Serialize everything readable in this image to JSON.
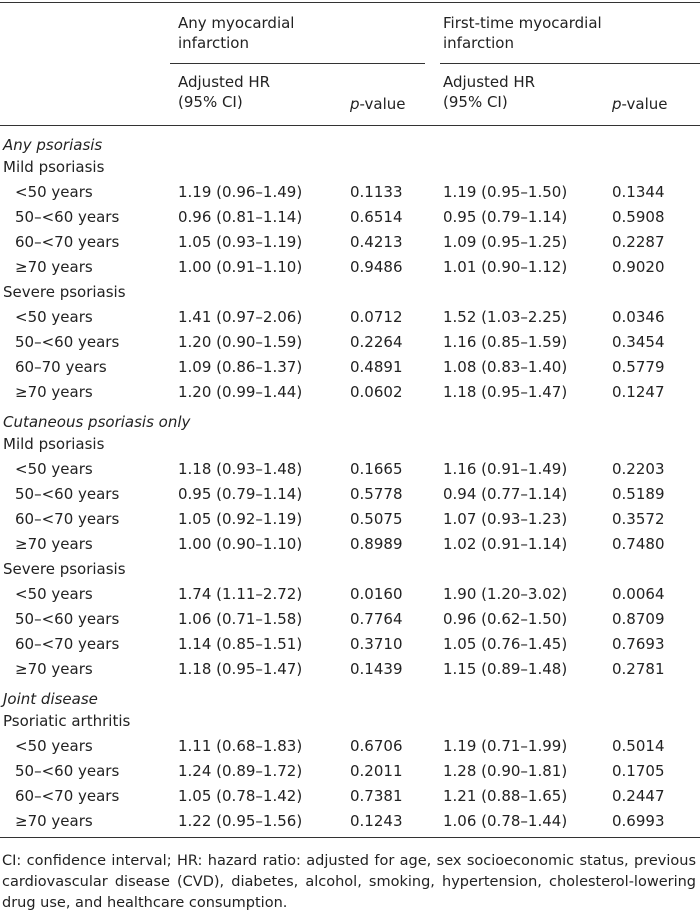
{
  "header": {
    "groups": [
      "Any myocardial infarction",
      "First-time myocardial infarction"
    ],
    "hr": "Adjusted HR (95% CI)",
    "p_italic": "p",
    "p_rest": "-value"
  },
  "sections": [
    {
      "title": "Any psoriasis",
      "groups": [
        {
          "title": "Mild psoriasis",
          "rows": [
            [
              "<50 years",
              "1.19 (0.96–1.49)",
              "0.1133",
              "1.19 (0.95–1.50)",
              "0.1344"
            ],
            [
              "50–<60 years",
              "0.96 (0.81–1.14)",
              "0.6514",
              "0.95 (0.79–1.14)",
              "0.5908"
            ],
            [
              "60–<70 years",
              "1.05 (0.93–1.19)",
              "0.4213",
              "1.09 (0.95–1.25)",
              "0.2287"
            ],
            [
              "≥70 years",
              "1.00 (0.91–1.10)",
              "0.9486",
              "1.01 (0.90–1.12)",
              "0.9020"
            ]
          ]
        },
        {
          "title": "Severe psoriasis",
          "rows": [
            [
              "<50 years",
              "1.41 (0.97–2.06)",
              "0.0712",
              "1.52 (1.03–2.25)",
              "0.0346"
            ],
            [
              "50–<60 years",
              "1.20 (0.90–1.59)",
              "0.2264",
              "1.16 (0.85–1.59)",
              "0.3454"
            ],
            [
              "60–70 years",
              "1.09 (0.86–1.37)",
              "0.4891",
              "1.08 (0.83–1.40)",
              "0.5779"
            ],
            [
              "≥70 years",
              "1.20 (0.99–1.44)",
              "0.0602",
              "1.18 (0.95–1.47)",
              "0.1247"
            ]
          ]
        }
      ]
    },
    {
      "title": "Cutaneous psoriasis only",
      "groups": [
        {
          "title": "Mild psoriasis",
          "rows": [
            [
              "<50 years",
              "1.18 (0.93–1.48)",
              "0.1665",
              "1.16 (0.91–1.49)",
              "0.2203"
            ],
            [
              "50–<60 years",
              "0.95 (0.79–1.14)",
              "0.5778",
              "0.94 (0.77–1.14)",
              "0.5189"
            ],
            [
              "60–<70 years",
              "1.05 (0.92–1.19)",
              "0.5075",
              "1.07 (0.93–1.23)",
              "0.3572"
            ],
            [
              "≥70 years",
              "1.00 (0.90–1.10)",
              "0.8989",
              "1.02 (0.91–1.14)",
              "0.7480"
            ]
          ]
        },
        {
          "title": "Severe psoriasis",
          "rows": [
            [
              "<50 years",
              "1.74 (1.11–2.72)",
              "0.0160",
              "1.90 (1.20–3.02)",
              "0.0064"
            ],
            [
              "50–<60 years",
              "1.06 (0.71–1.58)",
              "0.7764",
              "0.96 (0.62–1.50)",
              "0.8709"
            ],
            [
              "60–<70 years",
              "1.14 (0.85–1.51)",
              "0.3710",
              "1.05 (0.76–1.45)",
              "0.7693"
            ],
            [
              "≥70 years",
              "1.18 (0.95–1.47)",
              "0.1439",
              "1.15 (0.89–1.48)",
              "0.2781"
            ]
          ]
        }
      ]
    },
    {
      "title": "Joint disease",
      "groups": [
        {
          "title": "Psoriatic arthritis",
          "rows": [
            [
              "<50 years",
              "1.11 (0.68–1.83)",
              "0.6706",
              "1.19 (0.71–1.99)",
              "0.5014"
            ],
            [
              "50–<60 years",
              "1.24 (0.89–1.72)",
              "0.2011",
              "1.28 (0.90–1.81)",
              "0.1705"
            ],
            [
              "60–<70 years",
              "1.05 (0.78–1.42)",
              "0.7381",
              "1.21 (0.88–1.65)",
              "0.2447"
            ],
            [
              "≥70 years",
              "1.22 (0.95–1.56)",
              "0.1243",
              "1.06 (0.78–1.44)",
              "0.6993"
            ]
          ]
        }
      ]
    }
  ],
  "footnote": "CI: confidence interval; HR: hazard ratio: adjusted for age, sex socioeconomic status, previous cardiovascular disease (CVD), diabetes, alcohol, smoking, hypertension, cholesterol-lowering drug use, and healthcare consumption."
}
